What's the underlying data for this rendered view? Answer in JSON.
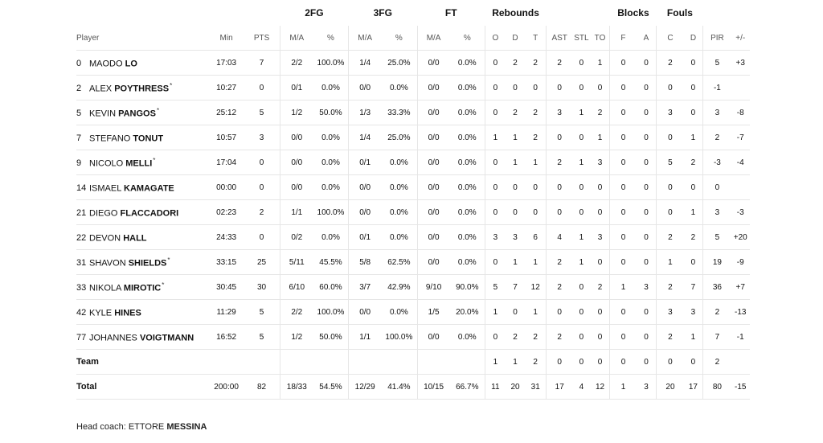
{
  "groups": {
    "fg2": "2FG",
    "fg3": "3FG",
    "ft": "FT",
    "reb": "Rebounds",
    "blk": "Blocks",
    "fouls": "Fouls"
  },
  "headers": {
    "player": "Player",
    "min": "Min",
    "pts": "PTS",
    "fg2_ma": "M/A",
    "fg2_pct": "%",
    "fg3_ma": "M/A",
    "fg3_pct": "%",
    "ft_ma": "M/A",
    "ft_pct": "%",
    "o": "O",
    "d": "D",
    "t": "T",
    "ast": "AST",
    "stl": "STL",
    "to": "TO",
    "f": "F",
    "a": "A",
    "c": "C",
    "fd": "D",
    "pir": "PIR",
    "pm": "+/-"
  },
  "players": [
    {
      "num": "0",
      "first": "MAODO",
      "last": "LO",
      "starter": "",
      "min": "17:03",
      "pts": "7",
      "fg2_ma": "2/2",
      "fg2_pct": "100.0%",
      "fg3_ma": "1/4",
      "fg3_pct": "25.0%",
      "ft_ma": "0/0",
      "ft_pct": "0.0%",
      "o": "0",
      "d": "2",
      "t": "2",
      "ast": "2",
      "stl": "0",
      "to": "1",
      "f": "0",
      "a": "0",
      "c": "2",
      "fd": "0",
      "pir": "5",
      "pm": "+3"
    },
    {
      "num": "2",
      "first": "ALEX",
      "last": "POYTHRESS",
      "starter": "*",
      "min": "10:27",
      "pts": "0",
      "fg2_ma": "0/1",
      "fg2_pct": "0.0%",
      "fg3_ma": "0/0",
      "fg3_pct": "0.0%",
      "ft_ma": "0/0",
      "ft_pct": "0.0%",
      "o": "0",
      "d": "0",
      "t": "0",
      "ast": "0",
      "stl": "0",
      "to": "0",
      "f": "0",
      "a": "0",
      "c": "0",
      "fd": "0",
      "pir": "-1",
      "pm": ""
    },
    {
      "num": "5",
      "first": "KEVIN",
      "last": "PANGOS",
      "starter": "*",
      "min": "25:12",
      "pts": "5",
      "fg2_ma": "1/2",
      "fg2_pct": "50.0%",
      "fg3_ma": "1/3",
      "fg3_pct": "33.3%",
      "ft_ma": "0/0",
      "ft_pct": "0.0%",
      "o": "0",
      "d": "2",
      "t": "2",
      "ast": "3",
      "stl": "1",
      "to": "2",
      "f": "0",
      "a": "0",
      "c": "3",
      "fd": "0",
      "pir": "3",
      "pm": "-8"
    },
    {
      "num": "7",
      "first": "STEFANO",
      "last": "TONUT",
      "starter": "",
      "min": "10:57",
      "pts": "3",
      "fg2_ma": "0/0",
      "fg2_pct": "0.0%",
      "fg3_ma": "1/4",
      "fg3_pct": "25.0%",
      "ft_ma": "0/0",
      "ft_pct": "0.0%",
      "o": "1",
      "d": "1",
      "t": "2",
      "ast": "0",
      "stl": "0",
      "to": "1",
      "f": "0",
      "a": "0",
      "c": "0",
      "fd": "1",
      "pir": "2",
      "pm": "-7"
    },
    {
      "num": "9",
      "first": "NICOLO",
      "last": "MELLI",
      "starter": "*",
      "min": "17:04",
      "pts": "0",
      "fg2_ma": "0/0",
      "fg2_pct": "0.0%",
      "fg3_ma": "0/1",
      "fg3_pct": "0.0%",
      "ft_ma": "0/0",
      "ft_pct": "0.0%",
      "o": "0",
      "d": "1",
      "t": "1",
      "ast": "2",
      "stl": "1",
      "to": "3",
      "f": "0",
      "a": "0",
      "c": "5",
      "fd": "2",
      "pir": "-3",
      "pm": "-4"
    },
    {
      "num": "14",
      "first": "ISMAEL",
      "last": "KAMAGATE",
      "starter": "",
      "min": "00:00",
      "pts": "0",
      "fg2_ma": "0/0",
      "fg2_pct": "0.0%",
      "fg3_ma": "0/0",
      "fg3_pct": "0.0%",
      "ft_ma": "0/0",
      "ft_pct": "0.0%",
      "o": "0",
      "d": "0",
      "t": "0",
      "ast": "0",
      "stl": "0",
      "to": "0",
      "f": "0",
      "a": "0",
      "c": "0",
      "fd": "0",
      "pir": "0",
      "pm": ""
    },
    {
      "num": "21",
      "first": "DIEGO",
      "last": "FLACCADORI",
      "starter": "",
      "min": "02:23",
      "pts": "2",
      "fg2_ma": "1/1",
      "fg2_pct": "100.0%",
      "fg3_ma": "0/0",
      "fg3_pct": "0.0%",
      "ft_ma": "0/0",
      "ft_pct": "0.0%",
      "o": "0",
      "d": "0",
      "t": "0",
      "ast": "0",
      "stl": "0",
      "to": "0",
      "f": "0",
      "a": "0",
      "c": "0",
      "fd": "1",
      "pir": "3",
      "pm": "-3"
    },
    {
      "num": "22",
      "first": "DEVON",
      "last": "HALL",
      "starter": "",
      "min": "24:33",
      "pts": "0",
      "fg2_ma": "0/2",
      "fg2_pct": "0.0%",
      "fg3_ma": "0/1",
      "fg3_pct": "0.0%",
      "ft_ma": "0/0",
      "ft_pct": "0.0%",
      "o": "3",
      "d": "3",
      "t": "6",
      "ast": "4",
      "stl": "1",
      "to": "3",
      "f": "0",
      "a": "0",
      "c": "2",
      "fd": "2",
      "pir": "5",
      "pm": "+20"
    },
    {
      "num": "31",
      "first": "SHAVON",
      "last": "SHIELDS",
      "starter": "*",
      "min": "33:15",
      "pts": "25",
      "fg2_ma": "5/11",
      "fg2_pct": "45.5%",
      "fg3_ma": "5/8",
      "fg3_pct": "62.5%",
      "ft_ma": "0/0",
      "ft_pct": "0.0%",
      "o": "0",
      "d": "1",
      "t": "1",
      "ast": "2",
      "stl": "1",
      "to": "0",
      "f": "0",
      "a": "0",
      "c": "1",
      "fd": "0",
      "pir": "19",
      "pm": "-9"
    },
    {
      "num": "33",
      "first": "NIKOLA",
      "last": "MIROTIC",
      "starter": "*",
      "min": "30:45",
      "pts": "30",
      "fg2_ma": "6/10",
      "fg2_pct": "60.0%",
      "fg3_ma": "3/7",
      "fg3_pct": "42.9%",
      "ft_ma": "9/10",
      "ft_pct": "90.0%",
      "o": "5",
      "d": "7",
      "t": "12",
      "ast": "2",
      "stl": "0",
      "to": "2",
      "f": "1",
      "a": "3",
      "c": "2",
      "fd": "7",
      "pir": "36",
      "pm": "+7"
    },
    {
      "num": "42",
      "first": "KYLE",
      "last": "HINES",
      "starter": "",
      "min": "11:29",
      "pts": "5",
      "fg2_ma": "2/2",
      "fg2_pct": "100.0%",
      "fg3_ma": "0/0",
      "fg3_pct": "0.0%",
      "ft_ma": "1/5",
      "ft_pct": "20.0%",
      "o": "1",
      "d": "0",
      "t": "1",
      "ast": "0",
      "stl": "0",
      "to": "0",
      "f": "0",
      "a": "0",
      "c": "3",
      "fd": "3",
      "pir": "2",
      "pm": "-13"
    },
    {
      "num": "77",
      "first": "JOHANNES",
      "last": "VOIGTMANN",
      "starter": "",
      "min": "16:52",
      "pts": "5",
      "fg2_ma": "1/2",
      "fg2_pct": "50.0%",
      "fg3_ma": "1/1",
      "fg3_pct": "100.0%",
      "ft_ma": "0/0",
      "ft_pct": "0.0%",
      "o": "0",
      "d": "2",
      "t": "2",
      "ast": "2",
      "stl": "0",
      "to": "0",
      "f": "0",
      "a": "0",
      "c": "2",
      "fd": "1",
      "pir": "7",
      "pm": "-1"
    }
  ],
  "team": {
    "label": "Team",
    "min": "",
    "pts": "",
    "fg2_ma": "",
    "fg2_pct": "",
    "fg3_ma": "",
    "fg3_pct": "",
    "ft_ma": "",
    "ft_pct": "",
    "o": "1",
    "d": "1",
    "t": "2",
    "ast": "0",
    "stl": "0",
    "to": "0",
    "f": "0",
    "a": "0",
    "c": "0",
    "fd": "0",
    "pir": "2",
    "pm": ""
  },
  "total": {
    "label": "Total",
    "min": "200:00",
    "pts": "82",
    "fg2_ma": "18/33",
    "fg2_pct": "54.5%",
    "fg3_ma": "12/29",
    "fg3_pct": "41.4%",
    "ft_ma": "10/15",
    "ft_pct": "66.7%",
    "o": "11",
    "d": "20",
    "t": "31",
    "ast": "17",
    "stl": "4",
    "to": "12",
    "f": "1",
    "a": "3",
    "c": "20",
    "fd": "17",
    "pir": "80",
    "pm": "-15"
  },
  "coach": {
    "prefix": "Head coach:",
    "first": "ETTORE",
    "last": "MESSINA"
  }
}
